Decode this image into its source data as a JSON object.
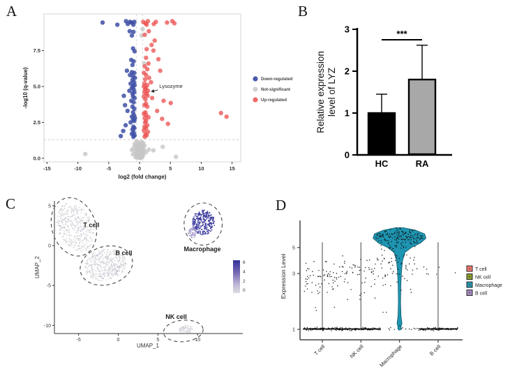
{
  "panels": {
    "a": {
      "label": "A"
    },
    "b": {
      "label": "B"
    },
    "c": {
      "label": "C"
    },
    "d": {
      "label": "D"
    }
  },
  "chart_data": [
    {
      "type": "scatter",
      "name": "volcano-plot",
      "xlabel": "log2 (fold change)",
      "ylabel": "-log10 (q-value)",
      "x_ticks": [
        -15,
        -10,
        -5,
        0,
        5,
        10,
        15
      ],
      "y_ticks": [
        0.0,
        2.5,
        5.0,
        7.5
      ],
      "xlim": [
        -15.5,
        16.4
      ],
      "ylim": [
        -0.25,
        10.05
      ],
      "threshold_h": 1.3,
      "threshold_v": [
        -0.5,
        0.5
      ],
      "annotation": {
        "text": "Lysozyme",
        "target": [
          1.3,
          4.35
        ],
        "text_at": [
          3.2,
          5.0
        ]
      },
      "legend": [
        {
          "label": "Down-regulated",
          "color": "#4a58ab"
        },
        {
          "label": "Not-significant",
          "color": "#d2d2d2"
        },
        {
          "label": "Up-regulated",
          "color": "#ee6a6a"
        }
      ],
      "series": [
        {
          "name": "Down-regulated",
          "color": "#3D4FA4",
          "opacity": 0.85,
          "points": [
            [
              -6.0,
              9.45
            ],
            [
              -3.6,
              9.3
            ],
            [
              -2.2,
              9.55
            ],
            [
              -1.9,
              9.35
            ],
            [
              -1.55,
              9.5
            ],
            [
              -1.3,
              9.45
            ],
            [
              -1.0,
              9.3
            ],
            [
              -0.85,
              9.5
            ],
            [
              -1.6,
              8.85
            ],
            [
              -1.0,
              8.8
            ],
            [
              -1.25,
              8.55
            ],
            [
              -1.05,
              7.65
            ],
            [
              -0.8,
              7.45
            ],
            [
              -1.35,
              6.85
            ],
            [
              -0.95,
              6.75
            ],
            [
              -1.15,
              6.5
            ],
            [
              -2.05,
              6.1
            ],
            [
              -1.25,
              6.0
            ],
            [
              -0.85,
              5.95
            ],
            [
              -1.55,
              5.8
            ],
            [
              -1.05,
              5.7
            ],
            [
              -0.75,
              5.6
            ],
            [
              -1.15,
              5.45
            ],
            [
              -0.9,
              5.3
            ],
            [
              -1.45,
              5.2
            ],
            [
              -0.8,
              5.1
            ],
            [
              -1.05,
              5.0
            ],
            [
              -1.25,
              4.9
            ],
            [
              -0.95,
              4.8
            ],
            [
              -1.65,
              4.7
            ],
            [
              -0.85,
              4.6
            ],
            [
              -1.15,
              4.5
            ],
            [
              -2.55,
              4.35
            ],
            [
              -1.05,
              4.3
            ],
            [
              -0.8,
              4.2
            ],
            [
              -1.35,
              4.0
            ],
            [
              -0.95,
              3.9
            ],
            [
              -2.35,
              3.7
            ],
            [
              -1.15,
              3.6
            ],
            [
              -0.85,
              3.45
            ],
            [
              -1.95,
              3.3
            ],
            [
              -1.05,
              3.2
            ],
            [
              -0.9,
              3.0
            ],
            [
              -1.25,
              2.9
            ],
            [
              -0.75,
              2.8
            ],
            [
              -1.05,
              2.7
            ],
            [
              -0.85,
              2.6
            ],
            [
              -1.45,
              2.5
            ],
            [
              -2.25,
              2.3
            ],
            [
              -1.0,
              2.2
            ],
            [
              -0.85,
              2.1
            ],
            [
              -1.15,
              2.0
            ],
            [
              -2.65,
              1.9
            ],
            [
              -0.95,
              1.8
            ],
            [
              -1.25,
              1.7
            ],
            [
              -0.8,
              1.6
            ],
            [
              -3.05,
              1.55
            ],
            [
              -1.0,
              1.5
            ]
          ]
        },
        {
          "name": "Not-significant",
          "color": "#C6C6C6",
          "opacity": 0.8,
          "points": [
            [
              0.5,
              9.0
            ],
            [
              0.35,
              8.55
            ],
            [
              0.75,
              6.6
            ],
            [
              -0.5,
              1.2
            ],
            [
              0.3,
              1.15
            ],
            [
              -0.2,
              1.1
            ],
            [
              0.6,
              1.05
            ],
            [
              -0.8,
              1.0
            ],
            [
              0.1,
              0.98
            ],
            [
              0.45,
              0.95
            ],
            [
              -0.3,
              0.9
            ],
            [
              0.8,
              0.88
            ],
            [
              -0.6,
              0.85
            ],
            [
              0.2,
              0.8
            ],
            [
              -0.1,
              0.78
            ],
            [
              0.5,
              0.75
            ],
            [
              -0.95,
              0.72
            ],
            [
              0.0,
              0.7
            ],
            [
              0.3,
              0.65
            ],
            [
              -0.45,
              0.62
            ],
            [
              0.7,
              0.6
            ],
            [
              1.5,
              0.6
            ],
            [
              -1.25,
              0.58
            ],
            [
              0.1,
              0.55
            ],
            [
              -0.2,
              0.52
            ],
            [
              0.4,
              0.5
            ],
            [
              -0.7,
              0.48
            ],
            [
              0.2,
              0.45
            ],
            [
              1.05,
              0.42
            ],
            [
              -0.35,
              0.4
            ],
            [
              0.0,
              0.38
            ],
            [
              0.55,
              0.35
            ],
            [
              -0.55,
              0.32
            ],
            [
              0.3,
              0.3
            ],
            [
              -1.05,
              0.28
            ],
            [
              0.15,
              0.25
            ],
            [
              2.25,
              0.55
            ],
            [
              -0.25,
              0.22
            ],
            [
              0.6,
              0.2
            ],
            [
              -0.45,
              0.18
            ],
            [
              0.25,
              0.15
            ],
            [
              -8.8,
              0.3
            ],
            [
              3.75,
              0.8
            ],
            [
              5.9,
              0.1
            ],
            [
              -0.1,
              0.12
            ],
            [
              0.4,
              0.1
            ],
            [
              -0.65,
              0.08
            ],
            [
              0.05,
              0.05
            ],
            [
              0.35,
              0.04
            ],
            [
              -0.35,
              0.03
            ],
            [
              0.15,
              0.02
            ],
            [
              -0.05,
              0.6
            ],
            [
              0.2,
              0.35
            ],
            [
              -0.15,
              0.45
            ],
            [
              0.05,
              0.9
            ],
            [
              -0.4,
              0.75
            ],
            [
              0.65,
              0.48
            ],
            [
              -0.2,
              0.3
            ],
            [
              0.1,
              0.68
            ]
          ]
        },
        {
          "name": "Up-regulated",
          "color": "#EC4D4D",
          "opacity": 0.75,
          "points": [
            [
              0.6,
              9.5
            ],
            [
              0.95,
              9.4
            ],
            [
              1.35,
              9.55
            ],
            [
              2.3,
              9.35
            ],
            [
              2.65,
              9.5
            ],
            [
              4.45,
              9.45
            ],
            [
              5.3,
              9.55
            ],
            [
              5.65,
              9.4
            ],
            [
              1.15,
              9.3
            ],
            [
              1.5,
              8.85
            ],
            [
              0.85,
              8.6
            ],
            [
              2.45,
              8.2
            ],
            [
              1.95,
              7.9
            ],
            [
              1.15,
              7.6
            ],
            [
              2.25,
              7.5
            ],
            [
              1.05,
              7.0
            ],
            [
              3.05,
              6.9
            ],
            [
              1.45,
              6.6
            ],
            [
              0.85,
              6.4
            ],
            [
              1.25,
              6.2
            ],
            [
              3.35,
              6.1
            ],
            [
              0.7,
              5.95
            ],
            [
              1.05,
              5.8
            ],
            [
              1.55,
              5.6
            ],
            [
              0.9,
              5.5
            ],
            [
              1.85,
              5.3
            ],
            [
              0.8,
              5.2
            ],
            [
              1.25,
              5.1
            ],
            [
              0.7,
              5.0
            ],
            [
              1.05,
              4.9
            ],
            [
              0.9,
              4.8
            ],
            [
              1.35,
              4.7
            ],
            [
              0.8,
              4.6
            ],
            [
              1.15,
              4.5
            ],
            [
              1.3,
              4.35
            ],
            [
              0.7,
              4.3
            ],
            [
              2.05,
              4.2
            ],
            [
              0.95,
              4.1
            ],
            [
              3.9,
              4.0
            ],
            [
              5.05,
              3.85
            ],
            [
              1.05,
              3.8
            ],
            [
              0.8,
              3.7
            ],
            [
              1.25,
              3.6
            ],
            [
              2.85,
              3.3
            ],
            [
              0.95,
              3.2
            ],
            [
              13.2,
              3.15
            ],
            [
              0.7,
              3.1
            ],
            [
              1.1,
              3.0
            ],
            [
              14.1,
              2.9
            ],
            [
              1.45,
              2.85
            ],
            [
              0.85,
              2.8
            ],
            [
              3.65,
              2.75
            ],
            [
              1.05,
              2.6
            ],
            [
              0.9,
              2.5
            ],
            [
              4.6,
              2.4
            ],
            [
              1.25,
              2.3
            ],
            [
              0.8,
              2.2
            ],
            [
              1.05,
              2.1
            ],
            [
              0.7,
              1.95
            ],
            [
              1.35,
              1.85
            ],
            [
              0.95,
              1.7
            ],
            [
              1.15,
              1.6
            ],
            [
              0.85,
              1.5
            ]
          ]
        }
      ]
    },
    {
      "type": "bar",
      "name": "lyz-expression-bar-chart",
      "ylabel_lines": [
        "Relative expression",
        "level of LYZ"
      ],
      "categories": [
        "HC",
        "RA"
      ],
      "values": [
        1.0,
        1.8
      ],
      "errors": [
        0.45,
        0.82
      ],
      "bar_colors": [
        "#000000",
        "#a8a8a8"
      ],
      "y_ticks": [
        0,
        1,
        2,
        3
      ],
      "ylim": [
        0,
        3
      ],
      "significance": {
        "label": "***",
        "y": 2.75
      }
    },
    {
      "type": "scatter",
      "name": "umap-feature-plot",
      "xlabel": "UMAP_1",
      "ylabel": "UMAP_2",
      "x_ticks": [
        -5,
        0,
        5,
        10
      ],
      "y_ticks": [
        5,
        0,
        -5,
        -10
      ],
      "colorbar": {
        "ticks": [
          6,
          4,
          2,
          0
        ],
        "high": "#30309B",
        "low": "#DDDDE2"
      },
      "clusters": [
        {
          "name": "T cell",
          "label_at": [
            -3.4,
            2.3
          ],
          "center": [
            -5.4,
            2.3
          ],
          "rx": 2.15,
          "ry": 3.2,
          "rot": -25,
          "n": 380,
          "palette": "low",
          "ellipse": {
            "cx": -5.6,
            "cy": 2.35,
            "rx": 2.75,
            "ry": 3.75,
            "rot": -18
          }
        },
        {
          "name": "B cell",
          "label_at": [
            0.7,
            -1.2
          ],
          "center": [
            -1.6,
            -2.4
          ],
          "rx": 2.65,
          "ry": 1.95,
          "rot": -15,
          "n": 430,
          "palette": "low",
          "ellipse": {
            "cx": -1.5,
            "cy": -2.5,
            "rx": 3.35,
            "ry": 2.4,
            "rot": -15
          }
        },
        {
          "name": "Macrophage",
          "label_at": [
            10.6,
            -0.7
          ],
          "center": [
            10.7,
            2.9
          ],
          "rx": 1.45,
          "ry": 1.55,
          "rot": 0,
          "n": 300,
          "palette": "high",
          "ellipse": {
            "cx": 10.7,
            "cy": 2.7,
            "rx": 2.4,
            "ry": 2.65,
            "rot": 0
          },
          "subcluster": {
            "center": [
              9.4,
              1.6
            ],
            "rx": 0.6,
            "ry": 0.65,
            "n": 60,
            "palette": "mid"
          }
        },
        {
          "name": "NK cell",
          "label_at": [
            7.3,
            -9.2
          ],
          "center": [
            8.5,
            -10.5
          ],
          "rx": 0.85,
          "ry": 0.5,
          "rot": 0,
          "n": 75,
          "palette": "low",
          "ellipse": {
            "cx": 8.2,
            "cy": -10.7,
            "rx": 2.5,
            "ry": 1.35,
            "rot": -5
          }
        }
      ]
    },
    {
      "type": "violin",
      "name": "lyz-violin-plot",
      "ylabel": "Expression Level",
      "y_ticks": [
        1,
        3,
        5
      ],
      "y_scale": "log10",
      "stem_max": 5.55,
      "categories": [
        {
          "name": "T cell",
          "color": "#EF7B70",
          "jitter": {
            "n": 68,
            "mean": 2.75,
            "sd": 0.55,
            "min": 1.45,
            "max": 5.6
          },
          "band_n": 120
        },
        {
          "name": "NK cell",
          "color": "#8A9E33",
          "jitter": {
            "n": 58,
            "mean": 3.1,
            "sd": 0.55,
            "min": 1.8,
            "max": 5.3
          },
          "band_n": 115
        },
        {
          "name": "Macrophage",
          "color": "#1E95B2",
          "jitter": {
            "n": 75,
            "mean": 3.6,
            "sd": 1.0,
            "min": 1.4,
            "max": 5.2
          },
          "inner_jitter": {
            "n": 150,
            "mean": 6.2,
            "sd": 0.55,
            "min": 5.0,
            "max": 7.3
          },
          "band_n": 16,
          "has_violin": true,
          "violin_profile": [
            [
              7.4,
              5
            ],
            [
              7.05,
              23
            ],
            [
              6.55,
              36
            ],
            [
              6.0,
              38
            ],
            [
              5.45,
              30
            ],
            [
              5.0,
              17
            ],
            [
              4.55,
              8
            ],
            [
              3.9,
              4.5
            ],
            [
              3.2,
              3
            ],
            [
              2.4,
              2
            ],
            [
              1.7,
              1.6
            ],
            [
              1.3,
              2.2
            ],
            [
              1.12,
              3.6
            ],
            [
              1.02,
              1.2
            ]
          ]
        },
        {
          "name": "B cell",
          "color": "#A78BC0",
          "jitter": {
            "n": 7,
            "mean": 3.0,
            "sd": 0.35,
            "min": 2.4,
            "max": 3.6
          },
          "band_n": 120
        }
      ],
      "legend": [
        {
          "label": "T cell",
          "color": "#EF7B70"
        },
        {
          "label": "NK cell",
          "color": "#8A9E33"
        },
        {
          "label": "Macrophage",
          "color": "#2E9AB0"
        },
        {
          "label": "B cell",
          "color": "#A78BC0"
        }
      ]
    }
  ]
}
